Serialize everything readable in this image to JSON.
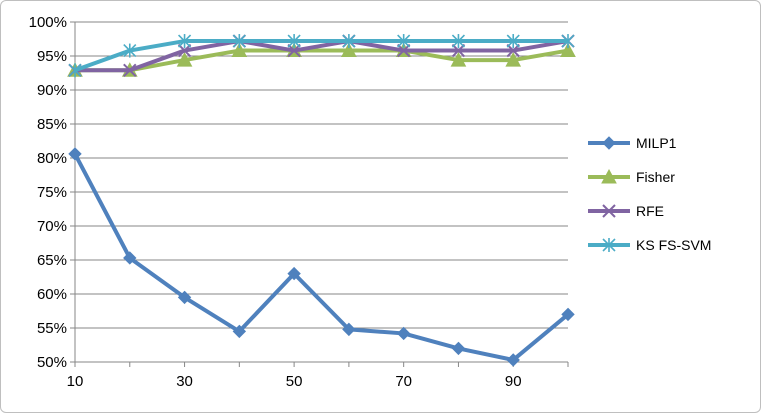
{
  "chart_data": {
    "type": "line",
    "x": [
      10,
      20,
      30,
      40,
      50,
      60,
      70,
      80,
      90,
      100
    ],
    "x_tick_labels": [
      "10",
      "30",
      "50",
      "70",
      "90"
    ],
    "x_tick_values": [
      10,
      30,
      50,
      70,
      90
    ],
    "y_tick_labels": [
      "50%",
      "55%",
      "60%",
      "65%",
      "70%",
      "75%",
      "80%",
      "85%",
      "90%",
      "95%",
      "100%"
    ],
    "y_tick_values": [
      50,
      55,
      60,
      65,
      70,
      75,
      80,
      85,
      90,
      95,
      100
    ],
    "ylim": [
      50,
      100
    ],
    "xlim": [
      10,
      100
    ],
    "grid": "horizontal",
    "legend_position": "right",
    "series": [
      {
        "name": "MILP1",
        "color": "#4f81bd",
        "marker": "diamond",
        "values": [
          80.6,
          65.3,
          59.5,
          54.5,
          63.0,
          54.8,
          54.2,
          52.0,
          50.3,
          57.0
        ]
      },
      {
        "name": "Fisher",
        "color": "#9bbb59",
        "marker": "triangle",
        "values": [
          92.9,
          92.9,
          94.4,
          95.8,
          95.8,
          95.8,
          95.8,
          94.4,
          94.4,
          95.8
        ]
      },
      {
        "name": "RFE",
        "color": "#8064a2",
        "marker": "x",
        "values": [
          92.9,
          92.9,
          95.8,
          97.2,
          95.8,
          97.2,
          95.8,
          95.8,
          95.8,
          97.2
        ]
      },
      {
        "name": "KS FS-SVM",
        "color": "#4bacc6",
        "marker": "asterisk",
        "values": [
          92.9,
          95.8,
          97.2,
          97.2,
          97.2,
          97.2,
          97.2,
          97.2,
          97.2,
          97.2
        ]
      }
    ]
  }
}
